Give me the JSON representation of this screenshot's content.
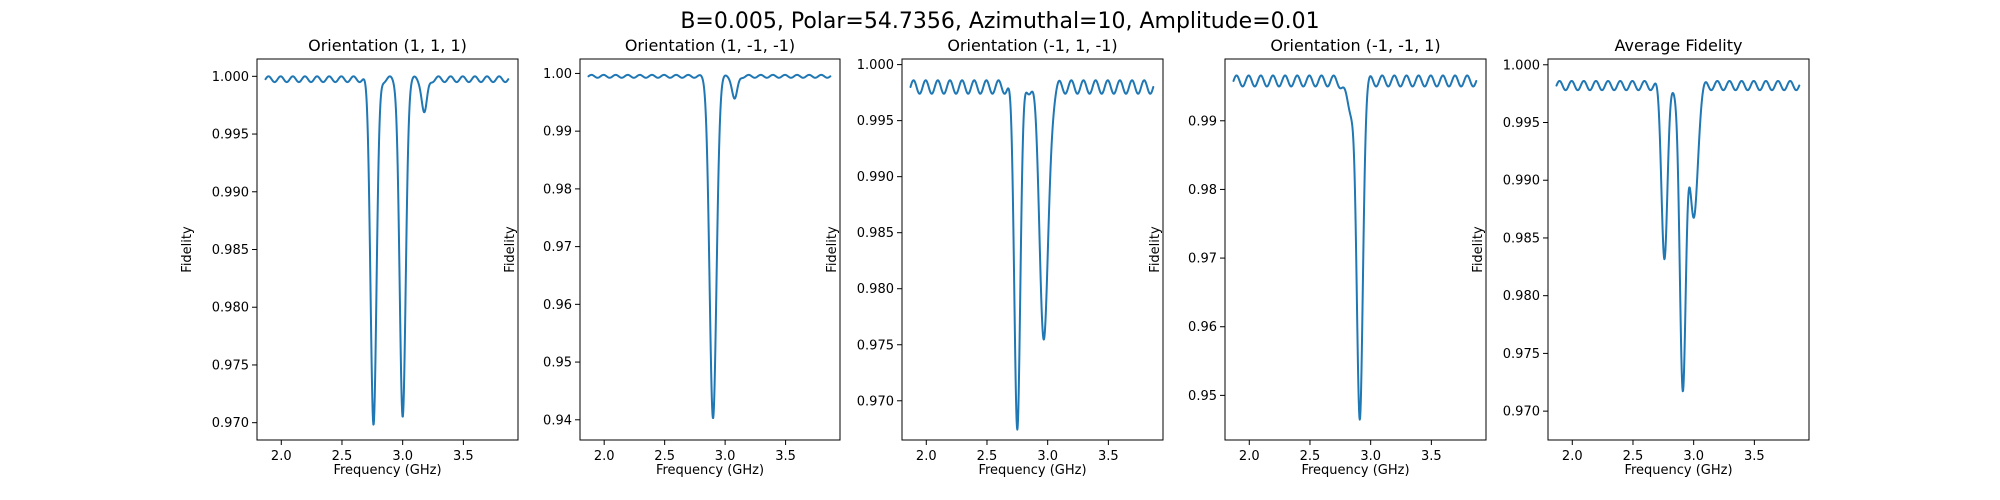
{
  "chart_data": {
    "suptitle": "B=0.005, Polar=54.7356, Azimuthal=10, Amplitude=0.01",
    "panels": [
      {
        "type": "line",
        "title": "Orientation (1, 1, 1)",
        "xlabel": "Frequency (GHz)",
        "ylabel": "Fidelity",
        "xlim": [
          1.8,
          3.95
        ],
        "ylim": [
          0.9685,
          1.0015
        ],
        "xticks": [
          "2.0",
          "2.5",
          "3.0",
          "3.5"
        ],
        "yticks": [
          "0.970",
          "0.975",
          "0.980",
          "0.985",
          "0.990",
          "0.995",
          "1.000"
        ],
        "x_start": 1.87,
        "x_end": 3.87,
        "baseline": 0.99975,
        "ripple_amp": 0.00025,
        "ripple_period": 0.1,
        "dips": [
          {
            "center": 2.76,
            "depth": 0.0298,
            "width": 0.035
          },
          {
            "center": 3.0,
            "depth": 0.0295,
            "width": 0.035
          },
          {
            "center": 3.18,
            "depth": 0.003,
            "width": 0.03
          }
        ]
      },
      {
        "type": "line",
        "title": "Orientation (1, -1, -1)",
        "xlabel": "Frequency (GHz)",
        "ylabel": "Fidelity",
        "xlim": [
          1.8,
          3.95
        ],
        "ylim": [
          0.9365,
          1.0025
        ],
        "xticks": [
          "2.0",
          "2.5",
          "3.0",
          "3.5"
        ],
        "yticks": [
          "0.94",
          "0.95",
          "0.96",
          "0.97",
          "0.98",
          "0.99",
          "1.00"
        ],
        "x_start": 1.87,
        "x_end": 3.87,
        "baseline": 0.9995,
        "ripple_amp": 0.00025,
        "ripple_period": 0.1,
        "dips": [
          {
            "center": 2.9,
            "depth": 0.0595,
            "width": 0.04
          },
          {
            "center": 3.08,
            "depth": 0.004,
            "width": 0.03
          }
        ]
      },
      {
        "type": "line",
        "title": "Orientation (-1, 1, -1)",
        "xlabel": "Frequency (GHz)",
        "ylabel": "Fidelity",
        "xlim": [
          1.8,
          3.95
        ],
        "ylim": [
          0.9665,
          1.0005
        ],
        "xticks": [
          "2.0",
          "2.5",
          "3.0",
          "3.5"
        ],
        "yticks": [
          "0.970",
          "0.975",
          "0.980",
          "0.985",
          "0.990",
          "0.995",
          "1.000"
        ],
        "x_start": 1.87,
        "x_end": 3.87,
        "baseline": 0.998,
        "ripple_amp": 0.0006,
        "ripple_period": 0.1,
        "dips": [
          {
            "center": 2.75,
            "depth": 0.03,
            "width": 0.035
          },
          {
            "center": 2.97,
            "depth": 0.0225,
            "width": 0.05
          }
        ]
      },
      {
        "type": "line",
        "title": "Orientation (-1, -1, 1)",
        "xlabel": "Frequency (GHz)",
        "ylabel": "Fidelity",
        "xlim": [
          1.8,
          3.95
        ],
        "ylim": [
          0.9435,
          0.999
        ],
        "xticks": [
          "2.0",
          "2.5",
          "3.0",
          "3.5"
        ],
        "yticks": [
          "0.95",
          "0.96",
          "0.97",
          "0.98",
          "0.99"
        ],
        "x_start": 1.87,
        "x_end": 3.87,
        "baseline": 0.9958,
        "ripple_amp": 0.0008,
        "ripple_period": 0.1,
        "dips": [
          {
            "center": 2.91,
            "depth": 0.0495,
            "width": 0.035
          },
          {
            "center": 2.83,
            "depth": 0.004,
            "width": 0.05
          }
        ]
      },
      {
        "type": "line",
        "title": "Average Fidelity",
        "xlabel": "Frequency (GHz)",
        "ylabel": "Fidelity",
        "xlim": [
          1.8,
          3.95
        ],
        "ylim": [
          0.9675,
          1.0005
        ],
        "xticks": [
          "2.0",
          "2.5",
          "3.0",
          "3.5"
        ],
        "yticks": [
          "0.970",
          "0.975",
          "0.980",
          "0.985",
          "0.990",
          "0.995",
          "1.000"
        ],
        "x_start": 1.87,
        "x_end": 3.87,
        "baseline": 0.9982,
        "ripple_amp": 0.0004,
        "ripple_period": 0.1,
        "dips": [
          {
            "center": 2.76,
            "depth": 0.0148,
            "width": 0.035
          },
          {
            "center": 2.91,
            "depth": 0.0265,
            "width": 0.035
          },
          {
            "center": 3.0,
            "depth": 0.0118,
            "width": 0.045
          }
        ]
      }
    ]
  }
}
